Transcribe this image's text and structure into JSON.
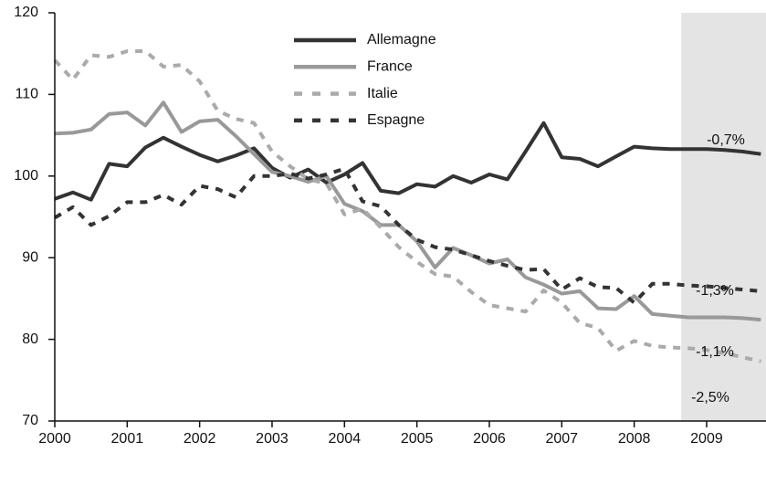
{
  "chart_data": {
    "type": "line",
    "x": [
      2000,
      2000.25,
      2000.5,
      2000.75,
      2001,
      2001.25,
      2001.5,
      2001.75,
      2002,
      2002.25,
      2002.5,
      2002.75,
      2003,
      2003.25,
      2003.5,
      2003.75,
      2004,
      2004.25,
      2004.5,
      2004.75,
      2005,
      2005.25,
      2005.5,
      2005.75,
      2006,
      2006.25,
      2006.5,
      2006.75,
      2007,
      2007.25,
      2007.5,
      2007.75,
      2008,
      2008.25,
      2008.5,
      2008.75,
      2009,
      2009.25,
      2009.5,
      2009.75
    ],
    "series": [
      {
        "name": "Allemagne",
        "color": "#333333",
        "style": "solid",
        "values": [
          97.2,
          98,
          97.1,
          101.5,
          101.2,
          103.5,
          104.7,
          103.6,
          102.6,
          101.8,
          102.5,
          103.4,
          101,
          99.8,
          100.8,
          99.2,
          100.2,
          101.6,
          98.2,
          97.9,
          99,
          98.7,
          100,
          99.2,
          100.2,
          99.6,
          103,
          106.5,
          102.3,
          102.1,
          101.2,
          102.4,
          103.6,
          103.4,
          103.3,
          103.3,
          103.3,
          103.2,
          103,
          102.7
        ]
      },
      {
        "name": "France",
        "color": "#999999",
        "style": "solid",
        "values": [
          105.2,
          105.3,
          105.7,
          107.6,
          107.8,
          106.2,
          109,
          105.4,
          106.7,
          106.9,
          104.9,
          102.7,
          100.5,
          100,
          99.3,
          100,
          96.6,
          95.7,
          94,
          94,
          92,
          88.8,
          91.2,
          90.3,
          89.3,
          89.8,
          87.6,
          86.7,
          85.6,
          85.9,
          83.8,
          83.7,
          85.3,
          83.1,
          82.9,
          82.7,
          82.7,
          82.7,
          82.6,
          82.4
        ]
      },
      {
        "name": "Italie",
        "color": "#aaaaaa",
        "style": "dashed",
        "values": [
          114.2,
          111.8,
          114.8,
          114.6,
          115.3,
          115.3,
          113.4,
          113.6,
          111.6,
          108,
          107,
          106.5,
          103,
          101.2,
          99.6,
          99.1,
          95.3,
          96,
          93.7,
          91.3,
          89.5,
          88,
          87.7,
          85.8,
          84.2,
          83.8,
          83.4,
          86,
          84.5,
          82,
          81.4,
          78.6,
          79.8,
          79.2,
          79,
          78.9,
          78.7,
          78.3,
          77.8,
          77.3
        ]
      },
      {
        "name": "Espagne",
        "color": "#333333",
        "style": "dashed",
        "values": [
          94.9,
          96.2,
          94,
          95.1,
          96.8,
          96.8,
          97.7,
          96.5,
          98.8,
          98.4,
          97.4,
          100,
          100,
          100.3,
          99.7,
          100.2,
          100.9,
          96.9,
          96.3,
          94,
          92.2,
          91.3,
          91,
          90.3,
          89.6,
          89,
          88.5,
          88.6,
          86.1,
          87.5,
          86.4,
          86.3,
          84.5,
          86.8,
          86.8,
          86.6,
          86.5,
          86.3,
          86.1,
          85.9
        ]
      }
    ],
    "annotations": [
      "-0,7%",
      "-1,3%",
      "-1,1%",
      "-2,5%"
    ],
    "xlim": [
      2000,
      2009.82
    ],
    "xticks": [
      2000,
      2001,
      2002,
      2003,
      2004,
      2005,
      2006,
      2007,
      2008,
      2009
    ],
    "ylim": [
      70,
      120
    ],
    "yticks": [
      70,
      80,
      90,
      100,
      110,
      120
    ],
    "shaded_xrange": [
      2008.65,
      2009.82
    ],
    "shade_color": "#e4e4e4",
    "grid": false,
    "legend": "top-center"
  }
}
